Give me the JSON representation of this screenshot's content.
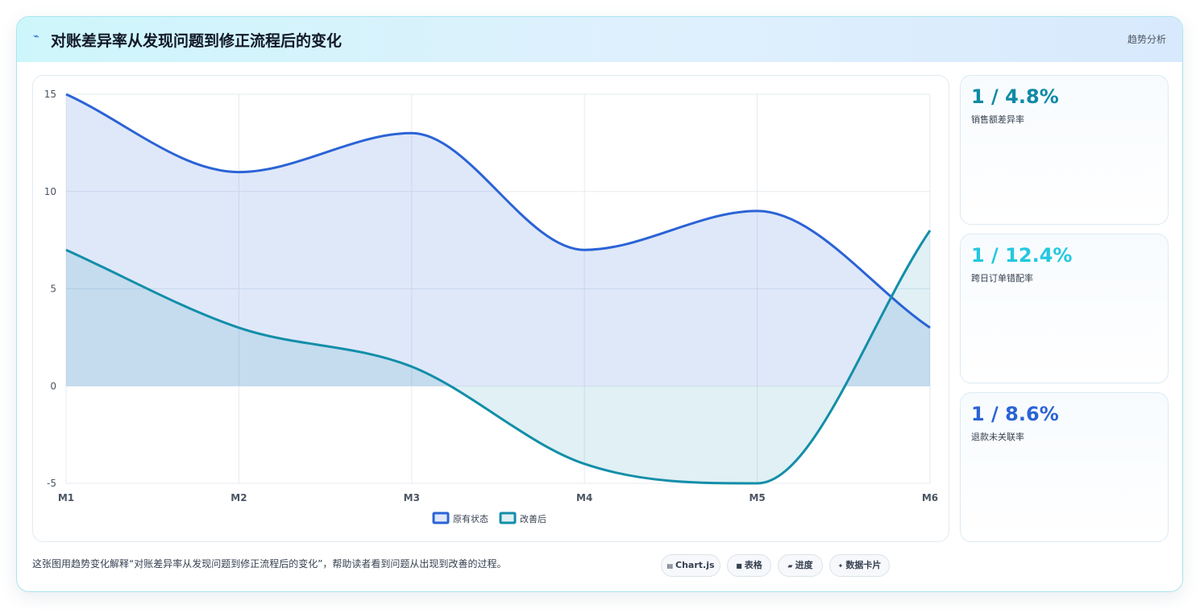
{
  "header": {
    "icon": "sparkline-icon",
    "title": "对账差异率从发现问题到修正流程后的变化",
    "tag": "趋势分析"
  },
  "chart_data": {
    "type": "line",
    "categories": [
      "M1",
      "M2",
      "M3",
      "M4",
      "M5",
      "M6"
    ],
    "series": [
      {
        "name": "原有状态",
        "values": [
          15,
          11,
          13,
          7,
          9,
          3
        ],
        "color": "#2b63d6",
        "fill": "rgba(43,99,214,0.15)"
      },
      {
        "name": "改善后",
        "values": [
          7,
          3,
          1,
          -4,
          -5,
          8
        ],
        "color": "#138ea9",
        "fill": "rgba(19,142,169,0.13)"
      }
    ],
    "yticks": [
      15,
      10,
      5,
      0,
      -5
    ],
    "ylim": [
      -5,
      15
    ],
    "grid": true,
    "legend": "bottom",
    "area": true,
    "smooth": true
  },
  "stats": [
    {
      "value": "1 / 4.8%",
      "label": "销售额差异率",
      "color": "#0e8aa5"
    },
    {
      "value": "1 / 12.4%",
      "label": "跨日订单错配率",
      "color": "#22c8df"
    },
    {
      "value": "1 / 8.6%",
      "label": "退款未关联率",
      "color": "#2b63d6"
    }
  ],
  "footer": {
    "description": "这张图用趋势变化解释“对账差异率从发现问题到修正流程后的变化”，帮助读者看到问题从出现到改善的过程。",
    "chips": [
      {
        "icon": "chart-icon",
        "label": "Chart.js"
      },
      {
        "icon": "table-icon",
        "label": "表格"
      },
      {
        "icon": "progress-icon",
        "label": "进度"
      },
      {
        "icon": "sparkle-icon",
        "label": "数据卡片"
      }
    ]
  }
}
